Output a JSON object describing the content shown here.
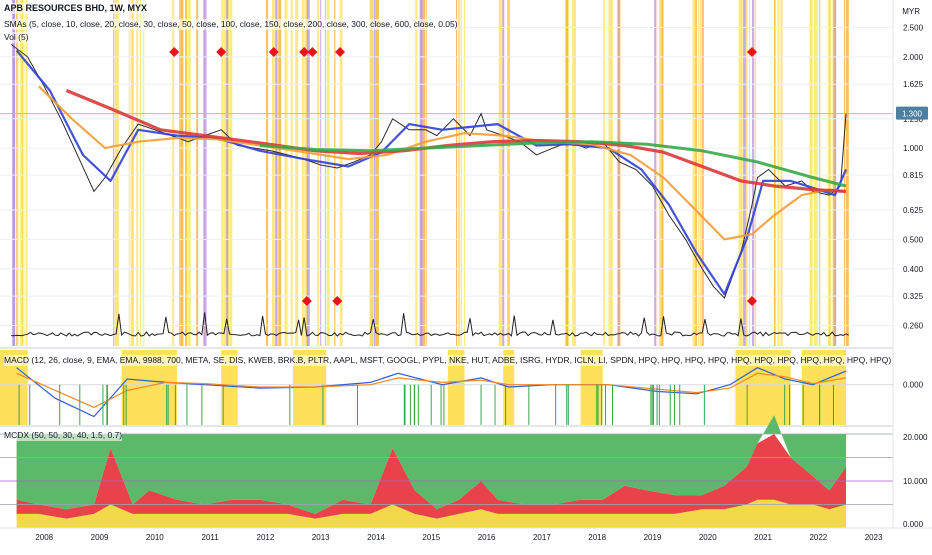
{
  "header": {
    "title": "APB RESOURCES BHD, 1W, MYX",
    "sma_legend": "SMAs (5, close, 10, close, 20, close, 30, close, 50, close, 100, close, 150, close, 200, close, 300, close, 600, close, 0.05)",
    "vol_legend": "Vol (5)",
    "currency": "MYR"
  },
  "chart_data": [
    {
      "type": "line",
      "title": "APB RESOURCES BHD, 1W, MYX",
      "y_scale": "log",
      "ylim": [
        0.24,
        2.9
      ],
      "y_ticks": [
        "2.500",
        "2.000",
        "1.625",
        "1.250",
        "1.000",
        "0.815",
        "0.625",
        "0.500",
        "0.400",
        "0.325",
        "0.260"
      ],
      "x_ticks": [
        "2008",
        "2009",
        "2010",
        "2011",
        "2012",
        "2013",
        "2014",
        "2015",
        "2016",
        "2017",
        "2018",
        "2019",
        "2020",
        "2021",
        "2022",
        "2023"
      ],
      "last_price_label": "1.300",
      "series": [
        {
          "name": "price",
          "x": [
            2007.5,
            2007.8,
            2008.1,
            2008.4,
            2008.7,
            2009.0,
            2009.2,
            2009.5,
            2009.8,
            2010.1,
            2010.4,
            2010.7,
            2011.0,
            2011.3,
            2011.6,
            2011.9,
            2012.2,
            2012.5,
            2012.8,
            2013.1,
            2013.4,
            2013.7,
            2014.0,
            2014.2,
            2014.4,
            2014.7,
            2015.0,
            2015.2,
            2015.5,
            2015.8,
            2016.0,
            2016.1,
            2016.4,
            2016.7,
            2017.0,
            2017.3,
            2017.6,
            2017.9,
            2018.2,
            2018.5,
            2018.8,
            2019.1,
            2019.4,
            2019.7,
            2020.0,
            2020.2,
            2020.4,
            2020.7,
            2020.9,
            2021.0,
            2021.2,
            2021.5,
            2021.8,
            2022.0,
            2022.3,
            2022.5,
            2022.6
          ],
          "values": [
            2.2,
            2.0,
            1.6,
            1.25,
            0.95,
            0.72,
            0.8,
            1.0,
            1.2,
            1.15,
            1.1,
            1.05,
            1.1,
            1.15,
            1.02,
            1.0,
            0.98,
            0.95,
            0.92,
            0.88,
            0.86,
            0.9,
            0.95,
            1.05,
            1.25,
            1.15,
            1.15,
            1.1,
            1.25,
            1.1,
            1.3,
            1.15,
            1.1,
            1.05,
            0.95,
            1.0,
            1.05,
            1.0,
            1.05,
            0.9,
            0.85,
            0.75,
            0.6,
            0.5,
            0.4,
            0.35,
            0.32,
            0.45,
            0.65,
            0.8,
            0.85,
            0.75,
            0.78,
            0.72,
            0.7,
            0.75,
            1.3
          ]
        },
        {
          "name": "sma-5",
          "x": [
            2007.6,
            2008.2,
            2008.8,
            2009.3,
            2009.8,
            2010.5,
            2011.2,
            2012.0,
            2012.8,
            2013.6,
            2014.2,
            2014.7,
            2015.3,
            2015.9,
            2016.3,
            2017.0,
            2017.6,
            2018.3,
            2018.9,
            2019.4,
            2019.9,
            2020.4,
            2020.8,
            2021.1,
            2021.6,
            2022.0,
            2022.4,
            2022.6
          ],
          "values": [
            2.1,
            1.55,
            0.95,
            0.78,
            1.15,
            1.1,
            1.08,
            0.98,
            0.92,
            0.87,
            0.97,
            1.2,
            1.15,
            1.18,
            1.2,
            1.02,
            1.03,
            1.0,
            0.85,
            0.65,
            0.45,
            0.33,
            0.5,
            0.78,
            0.78,
            0.74,
            0.7,
            0.85
          ]
        },
        {
          "name": "sma-50",
          "x": [
            2008.0,
            2008.6,
            2009.2,
            2009.8,
            2010.5,
            2011.2,
            2012.0,
            2012.8,
            2013.6,
            2014.3,
            2015.0,
            2015.7,
            2016.4,
            2017.2,
            2018.0,
            2018.7,
            2019.3,
            2019.9,
            2020.4,
            2020.9,
            2021.3,
            2021.8,
            2022.3,
            2022.6
          ],
          "values": [
            1.6,
            1.25,
            1.0,
            1.05,
            1.08,
            1.07,
            1.02,
            0.97,
            0.92,
            0.95,
            1.05,
            1.12,
            1.1,
            1.05,
            1.03,
            0.95,
            0.8,
            0.62,
            0.5,
            0.52,
            0.6,
            0.7,
            0.73,
            0.72
          ]
        },
        {
          "name": "sma-200",
          "x": [
            2008.5,
            2009.3,
            2010.2,
            2011.0,
            2012.0,
            2013.0,
            2013.8,
            2014.6,
            2015.4,
            2016.2,
            2017.0,
            2017.8,
            2018.6,
            2019.3,
            2020.0,
            2020.7,
            2021.3,
            2022.0,
            2022.6
          ],
          "values": [
            1.55,
            1.35,
            1.15,
            1.1,
            1.04,
            0.98,
            0.96,
            0.98,
            1.02,
            1.05,
            1.06,
            1.05,
            1.02,
            0.97,
            0.87,
            0.78,
            0.75,
            0.73,
            0.72
          ]
        },
        {
          "name": "sma-600",
          "x": [
            2012.0,
            2013.0,
            2014.0,
            2015.0,
            2016.0,
            2017.0,
            2018.0,
            2019.0,
            2020.0,
            2021.0,
            2022.0,
            2022.6
          ],
          "values": [
            1.02,
            0.99,
            0.98,
            1.0,
            1.02,
            1.04,
            1.05,
            1.03,
            0.98,
            0.9,
            0.8,
            0.75
          ]
        }
      ],
      "markers_top": [
        2010.45,
        2011.3,
        2012.25,
        2012.8,
        2012.95,
        2013.45,
        2020.9
      ],
      "markers_bottom": [
        2012.85,
        2013.4,
        2020.9
      ]
    },
    {
      "type": "line",
      "title": "MACD (12, 26, close, 9, EMA, EMA, 9988, 700, META, SE, DIS, KWEB, BRK.B, PLTR, AAPL, MSFT, GOOGL, PYPL, NKE, HUT, ADBE, ISRG, HYDR, ICLN, LI, SPDN, HPQ, HPQ, HPQ, HPQ, HPQ, HPQ, HPQ, HPQ, HPQ, HPQ, HPQ)",
      "y_ticks": [
        "0.000"
      ],
      "series": [
        {
          "name": "macd",
          "x": [
            2007.6,
            2008.3,
            2009.0,
            2009.6,
            2010.3,
            2011.0,
            2012.0,
            2013.0,
            2014.0,
            2014.5,
            2015.3,
            2016.0,
            2016.5,
            2017.3,
            2018.3,
            2019.2,
            2019.9,
            2020.5,
            2021.0,
            2021.5,
            2022.0,
            2022.6
          ],
          "values": [
            0.15,
            -0.12,
            -0.28,
            0.05,
            0.02,
            0.0,
            -0.03,
            -0.02,
            0.02,
            0.1,
            0.0,
            0.06,
            -0.02,
            0.0,
            0.0,
            -0.06,
            -0.08,
            0.0,
            0.15,
            0.05,
            0.0,
            0.12
          ]
        },
        {
          "name": "signal",
          "x": [
            2007.6,
            2008.3,
            2009.0,
            2009.6,
            2010.3,
            2011.0,
            2012.0,
            2013.0,
            2014.0,
            2014.5,
            2015.3,
            2016.0,
            2016.5,
            2017.3,
            2018.3,
            2019.2,
            2019.9,
            2020.5,
            2021.0,
            2021.5,
            2022.0,
            2022.6
          ],
          "values": [
            0.1,
            -0.05,
            -0.2,
            -0.05,
            0.02,
            0.01,
            -0.02,
            -0.02,
            0.0,
            0.06,
            0.02,
            0.04,
            0.0,
            0.0,
            0.0,
            -0.04,
            -0.07,
            -0.03,
            0.1,
            0.07,
            0.01,
            0.06
          ]
        }
      ]
    },
    {
      "type": "area",
      "title": "MCDX (50, 50, 30, 40, 1.5, 0.7)",
      "y_ticks": [
        "20.000",
        "10.000",
        "0.000"
      ],
      "ylim": [
        0,
        20
      ],
      "x": [
        2007.6,
        2008.0,
        2008.5,
        2009.0,
        2009.3,
        2009.7,
        2010.0,
        2010.5,
        2011.0,
        2011.5,
        2012.0,
        2012.5,
        2013.0,
        2013.5,
        2014.0,
        2014.4,
        2014.8,
        2015.2,
        2015.6,
        2016.0,
        2016.3,
        2016.8,
        2017.3,
        2017.8,
        2018.2,
        2018.6,
        2019.0,
        2019.5,
        2020.0,
        2020.4,
        2020.8,
        2021.0,
        2021.3,
        2021.6,
        2022.0,
        2022.3,
        2022.6
      ],
      "series": [
        {
          "name": "banker",
          "values": [
            3,
            2,
            2,
            2,
            12,
            2,
            5,
            3,
            2,
            3,
            3,
            2,
            1,
            3,
            2,
            12,
            5,
            2,
            3,
            6,
            3,
            2,
            2,
            3,
            3,
            6,
            5,
            4,
            3,
            5,
            8,
            12,
            18,
            10,
            6,
            4,
            8
          ]
        },
        {
          "name": "hot-money",
          "values": [
            3,
            3,
            2,
            3,
            5,
            3,
            3,
            3,
            3,
            3,
            3,
            3,
            2,
            3,
            3,
            5,
            3,
            2,
            3,
            4,
            3,
            3,
            3,
            3,
            3,
            3,
            3,
            3,
            4,
            4,
            5,
            6,
            6,
            5,
            5,
            4,
            5
          ]
        },
        {
          "name": "retail",
          "values": [
            14,
            15,
            16,
            15,
            3,
            15,
            12,
            14,
            15,
            14,
            14,
            15,
            17,
            14,
            15,
            3,
            12,
            16,
            14,
            10,
            14,
            15,
            15,
            14,
            14,
            11,
            12,
            13,
            13,
            11,
            7,
            2,
            0,
            5,
            9,
            12,
            7
          ]
        }
      ]
    }
  ],
  "colors": {
    "price": "#2b2b2b",
    "sma_fast": "#3040d8",
    "sma_mid": "#f39c3a",
    "sma_slow": "#d93a3a",
    "sma_600": "#3aa84a",
    "marker": "#e8141c",
    "vbar_yellow": "#fde15a",
    "vbar_orange": "#f7a928",
    "vbar_purple": "#b48ee8",
    "mcdx_banker": "#e8434a",
    "mcdx_hot": "#f2d94a",
    "mcdx_retail": "#5cb96a",
    "macd_line": "#2f5fd6",
    "signal_line": "#f08a26",
    "price_label_bg": "#4e7f9e"
  }
}
